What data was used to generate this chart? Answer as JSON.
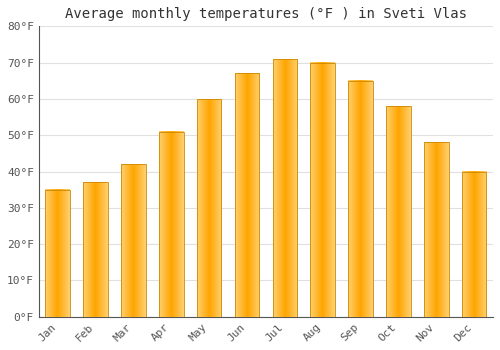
{
  "title": "Average monthly temperatures (°F ) in Sveti Vlas",
  "months": [
    "Jan",
    "Feb",
    "Mar",
    "Apr",
    "May",
    "Jun",
    "Jul",
    "Aug",
    "Sep",
    "Oct",
    "Nov",
    "Dec"
  ],
  "values": [
    35,
    37,
    42,
    51,
    60,
    67,
    71,
    70,
    65,
    58,
    48,
    40
  ],
  "ylim": [
    0,
    80
  ],
  "yticks": [
    0,
    10,
    20,
    30,
    40,
    50,
    60,
    70,
    80
  ],
  "ytick_labels": [
    "0°F",
    "10°F",
    "20°F",
    "30°F",
    "40°F",
    "50°F",
    "60°F",
    "70°F",
    "80°F"
  ],
  "background_color": "#ffffff",
  "grid_color": "#e0e0e0",
  "bar_color_main": "#FFA500",
  "bar_color_light": "#FFD070",
  "bar_edge_color": "#CC8800",
  "title_fontsize": 10,
  "tick_fontsize": 8,
  "font_family": "monospace",
  "bar_width": 0.65
}
